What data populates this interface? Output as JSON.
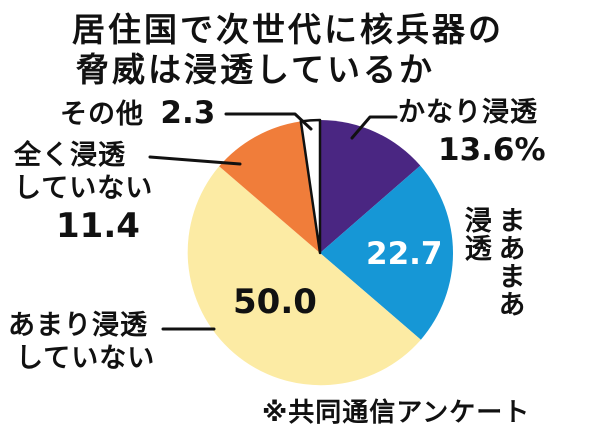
{
  "title": {
    "line1": "居住国で次世代に核兵器の",
    "line2": "脅威は浸透しているか"
  },
  "source": "※共同通信アンケート",
  "chart_data": {
    "type": "pie",
    "title": "居住国で次世代に核兵器の脅威は浸透しているか",
    "unit": "%",
    "start_angle": "12-oclock",
    "direction": "clockwise",
    "slices": [
      {
        "label": "かなり浸透",
        "value": 13.6,
        "display": "13.6%",
        "color": "#4a2682",
        "outlined": false
      },
      {
        "label": "まあまあ浸透",
        "value": 22.7,
        "display": "22.7",
        "color": "#1697d6",
        "outlined": false
      },
      {
        "label": "あまり浸透していない",
        "value": 50.0,
        "display": "50.0",
        "color": "#fceba4",
        "outlined": false
      },
      {
        "label": "全く浸透していない",
        "value": 11.4,
        "display": "11.4",
        "color": "#f07d3a",
        "outlined": false
      },
      {
        "label": "その他",
        "value": 2.3,
        "display": "2.3",
        "color": "#ffffff",
        "outlined": true
      }
    ]
  },
  "labels": {
    "maamaa_col_right": "まあまあ",
    "maamaa_col_left": "浸透",
    "amari_line1": "あまり浸透",
    "amari_line2": "していない",
    "mattaku_line1": "全く浸透",
    "mattaku_line2": "していない"
  }
}
